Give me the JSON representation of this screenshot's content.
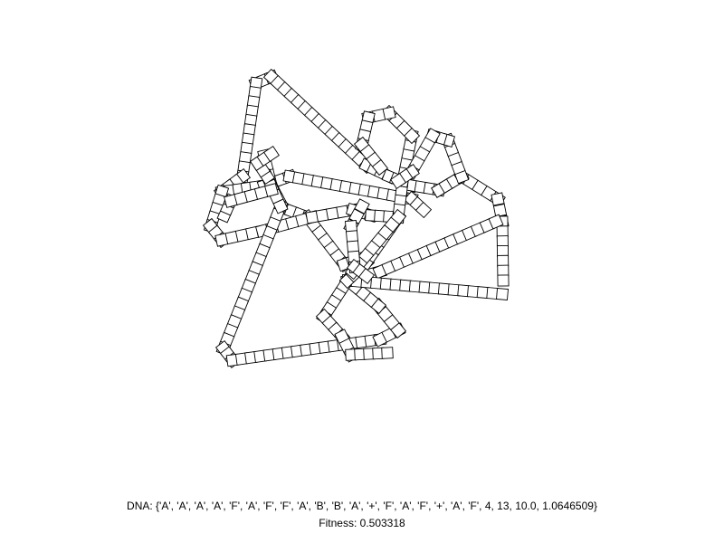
{
  "dna": {
    "prefix": "DNA: ",
    "genome": "{'A', 'A', 'A', 'A', 'F', 'A', 'F', 'F', 'A', 'B', 'B', 'A', '+', 'F', 'A', 'F', '+', 'A', 'F', 4, 13, 10.0, 1.0646509}"
  },
  "fitness": {
    "prefix": "Fitness: ",
    "value": "0.503318"
  },
  "colors": {
    "background": "#ffffff",
    "segment_stroke": "#000000",
    "segment_fill": "#ffffff"
  }
}
